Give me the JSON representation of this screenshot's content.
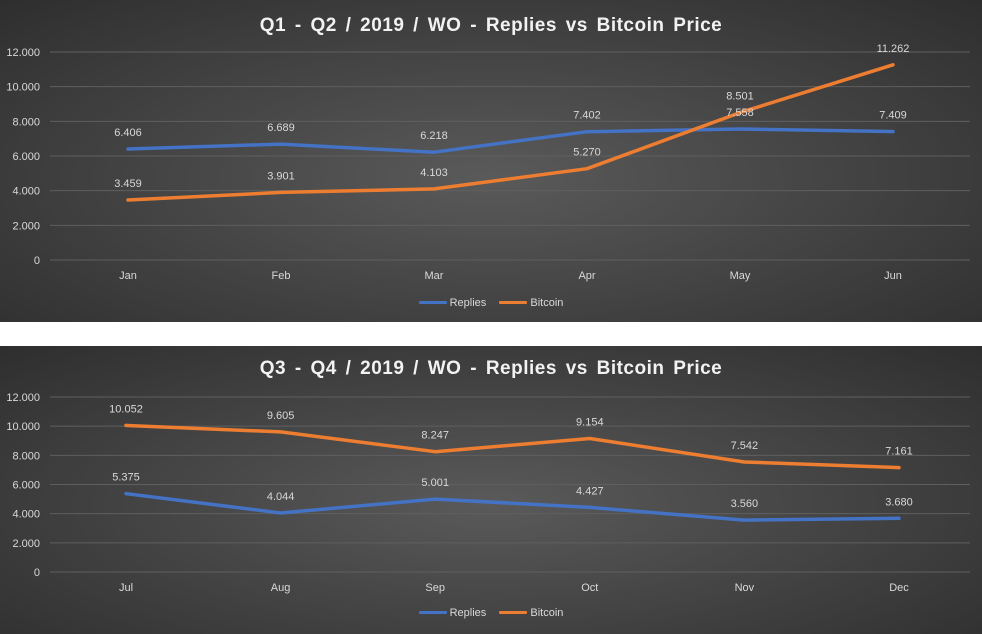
{
  "colors": {
    "replies": "#4472c4",
    "bitcoin": "#ed7d31",
    "gridline": "#5f5f5f",
    "axis_text": "#d9d9d9"
  },
  "chart_data": [
    {
      "type": "line",
      "title": "Q1 - Q2 / 2019 / WO - Replies vs Bitcoin  Price",
      "categories": [
        "Jan",
        "Feb",
        "Mar",
        "Apr",
        "May",
        "Jun"
      ],
      "ylim": [
        0,
        12000
      ],
      "yticks": [
        "0",
        "2.000",
        "4.000",
        "6.000",
        "8.000",
        "10.000",
        "12.000"
      ],
      "grid": true,
      "legend_position": "bottom",
      "series": [
        {
          "name": "Replies",
          "values": [
            6406,
            6689,
            6218,
            7402,
            7558,
            7409
          ],
          "labels": [
            "6.406",
            "6.689",
            "6.218",
            "7.402",
            "7.558",
            "7.409"
          ]
        },
        {
          "name": "Bitcoin",
          "values": [
            3459,
            3901,
            4103,
            5270,
            8501,
            11262
          ],
          "labels": [
            "3.459",
            "3.901",
            "4.103",
            "5.270",
            "8.501",
            "11.262"
          ]
        }
      ]
    },
    {
      "type": "line",
      "title": "Q3 - Q4 / 2019 / WO - Replies vs Bitcoin  Price",
      "categories": [
        "Jul",
        "Aug",
        "Sep",
        "Oct",
        "Nov",
        "Dec"
      ],
      "ylim": [
        0,
        12000
      ],
      "yticks": [
        "0",
        "2.000",
        "4.000",
        "6.000",
        "8.000",
        "10.000",
        "12.000"
      ],
      "grid": true,
      "legend_position": "bottom",
      "series": [
        {
          "name": "Replies",
          "values": [
            5375,
            4044,
            5001,
            4427,
            3560,
            3680
          ],
          "labels": [
            "5.375",
            "4.044",
            "5.001",
            "4.427",
            "3.560",
            "3.680"
          ]
        },
        {
          "name": "Bitcoin",
          "values": [
            10052,
            9605,
            8247,
            9154,
            7542,
            7161
          ],
          "labels": [
            "10.052",
            "9.605",
            "8.247",
            "9.154",
            "7.542",
            "7.161"
          ]
        }
      ]
    }
  ]
}
